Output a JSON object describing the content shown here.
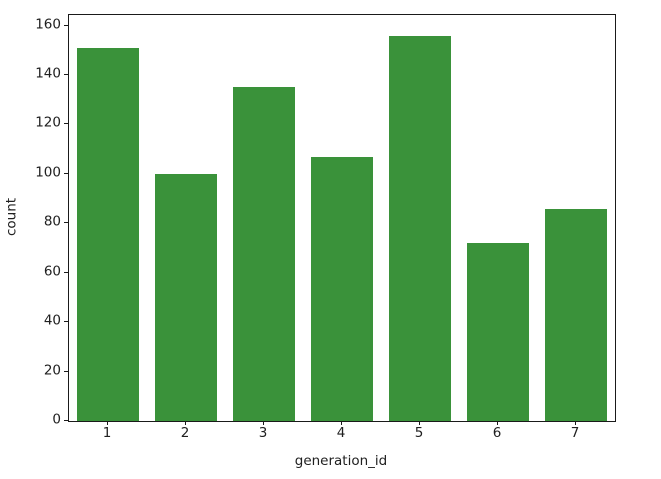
{
  "figure": {
    "background_color": "#ffffff",
    "axis_color": "#1a1a1a",
    "text_color": "#202020"
  },
  "chart_data": {
    "type": "bar",
    "title": "",
    "categories": [
      "1",
      "2",
      "3",
      "4",
      "5",
      "6",
      "7"
    ],
    "values": [
      151,
      100,
      135,
      107,
      156,
      72,
      86
    ],
    "xlabel": "generation_id",
    "ylabel": "count",
    "yticks": [
      0,
      20,
      40,
      60,
      80,
      100,
      120,
      140,
      160
    ],
    "ylim": [
      0,
      164.3
    ],
    "bar_color": "#3a923a",
    "bar_width_fraction": 0.8,
    "grid": false,
    "legend": null
  }
}
